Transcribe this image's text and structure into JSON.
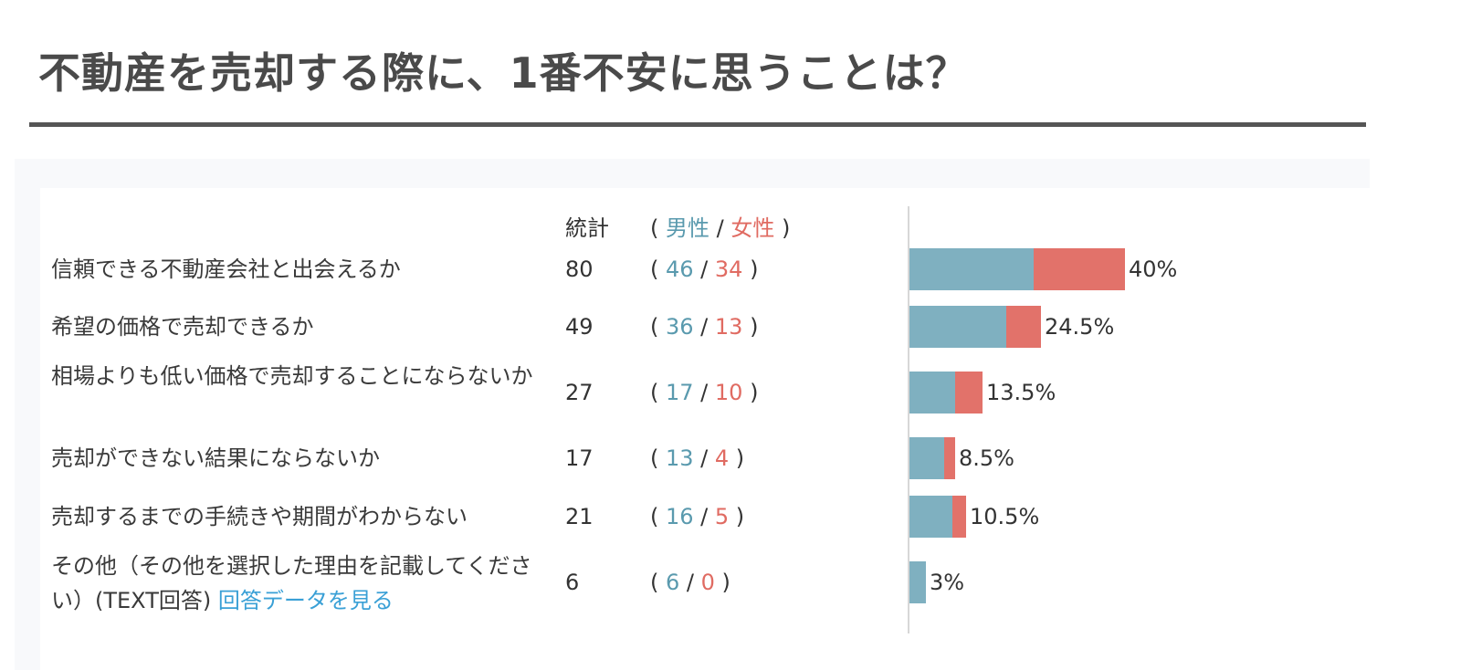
{
  "header": {
    "title": "不動産を売却する際に、1番不安に思うことは？"
  },
  "table": {
    "stat_header": "統計",
    "gender_header": {
      "open": "(",
      "male": "男性",
      "sep": "/",
      "female": "女性",
      "close": ")"
    },
    "link_text": "回答データを見る"
  },
  "colors": {
    "male": "#7fb0c0",
    "female": "#e2726a",
    "male_text": "#5a9aae",
    "female_text": "#e06b62",
    "link": "#3aa0d6"
  },
  "chart_data": {
    "type": "bar",
    "orientation": "horizontal",
    "stacked": true,
    "categories": [
      "信頼できる不動産会社と出会えるか",
      "希望の価格で売却できるか",
      "相場よりも低い価格で売却することにならないか",
      "売却ができない結果にならないか",
      "売却するまでの手続きや期間がわからない",
      "その他（その他を選択した理由を記載してください）(TEXT回答)"
    ],
    "totals": [
      80,
      49,
      27,
      17,
      21,
      6
    ],
    "series": [
      {
        "name": "男性",
        "values": [
          46,
          36,
          17,
          13,
          16,
          6
        ]
      },
      {
        "name": "女性",
        "values": [
          34,
          13,
          10,
          4,
          5,
          0
        ]
      }
    ],
    "percent_labels": [
      "40%",
      "24.5%",
      "13.5%",
      "8.5%",
      "10.5%",
      "3%"
    ],
    "xlim": [
      0,
      135
    ]
  }
}
